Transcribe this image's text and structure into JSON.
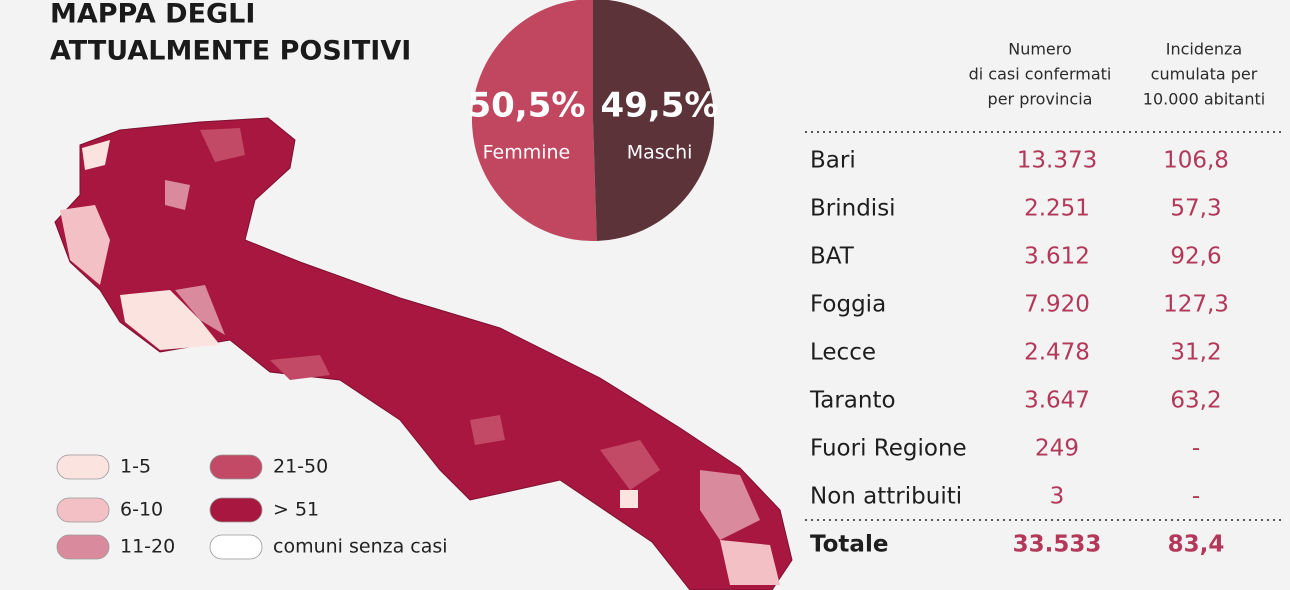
{
  "title": [
    "MAPPA DEGLI",
    "ATTUALMENTE POSITIVI"
  ],
  "chart_data": {
    "type": "pie",
    "categories": [
      "Femmine",
      "Maschi"
    ],
    "values": [
      50.5,
      49.5
    ],
    "value_labels": [
      "50,5%",
      "49,5%"
    ],
    "colors": [
      "#c0475f",
      "#5c3338"
    ]
  },
  "legend": {
    "items": [
      {
        "label": "1-5",
        "color": "#fbe3e0"
      },
      {
        "label": "6-10",
        "color": "#f3c0c5"
      },
      {
        "label": "11-20",
        "color": "#d98a9c"
      },
      {
        "label": "21-50",
        "color": "#c24a66"
      },
      {
        "label": "> 51",
        "color": "#a8173f"
      },
      {
        "label": "comuni senza casi",
        "color": "#ffffff"
      }
    ]
  },
  "table": {
    "headers": [
      [
        "Numero",
        "di casi confermati",
        "per provincia"
      ],
      [
        "Incidenza",
        "cumulata per",
        "10.000 abitanti"
      ]
    ],
    "rows": [
      [
        "Bari",
        "13.373",
        "106,8"
      ],
      [
        "Brindisi",
        "2.251",
        "57,3"
      ],
      [
        "BAT",
        "3.612",
        "92,6"
      ],
      [
        "Foggia",
        "7.920",
        "127,3"
      ],
      [
        "Lecce",
        "2.478",
        "31,2"
      ],
      [
        "Taranto",
        "3.647",
        "63,2"
      ],
      [
        "Fuori Regione",
        "249",
        "-"
      ],
      [
        "Non attribuiti",
        "3",
        "-"
      ]
    ],
    "total": [
      "Totale",
      "33.533",
      "83,4"
    ]
  }
}
